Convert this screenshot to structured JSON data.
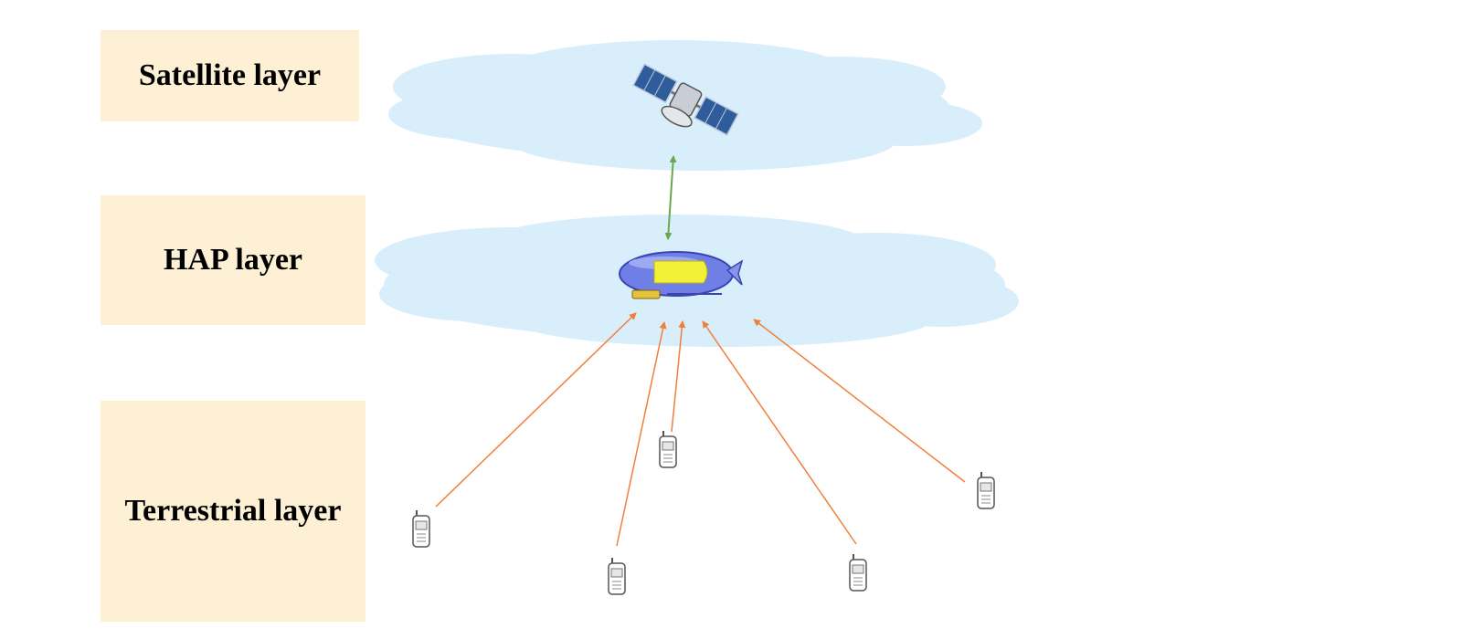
{
  "layers": {
    "satellite": "Satellite layer",
    "hap": "HAP layer",
    "terrestrial": "Terrestrial layer"
  },
  "colors": {
    "label_background": "#fdf0d5",
    "cloud": "#d9eefb",
    "uplink": "#f07f3c",
    "backhaul": "#6aa84f",
    "airship_body": "#6f7fe6",
    "airship_panel": "#f3f03a"
  },
  "icons": {
    "satellite": "satellite-icon",
    "hap": "airship-icon",
    "terminal": "mobile-phone-icon"
  }
}
